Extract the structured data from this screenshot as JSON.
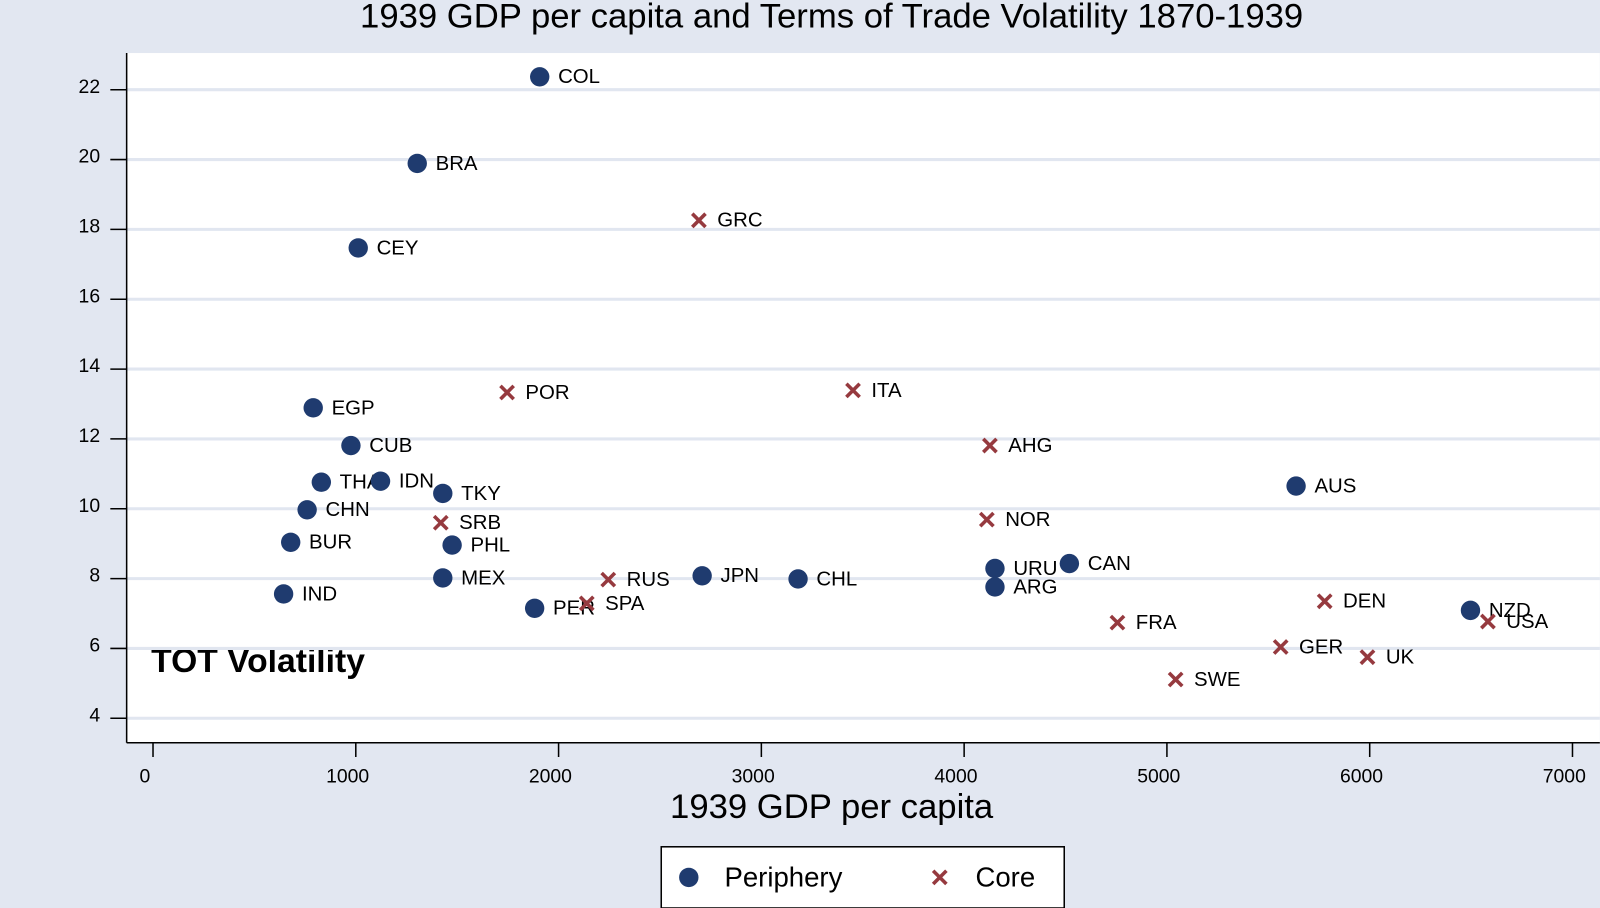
{
  "chart_data": {
    "type": "scatter",
    "title": "1939 GDP per capita and Terms of Trade Volatility 1870-1939",
    "x_label": "1939 GDP per capita",
    "y_label": "TOT Volatility",
    "xlim": [
      -130,
      7135
    ],
    "ylim": [
      3.3,
      23.05
    ],
    "xticks": [
      0,
      1000,
      2000,
      3000,
      4000,
      5000,
      6000,
      7000
    ],
    "yticks": [
      4,
      6,
      8,
      10,
      12,
      14,
      16,
      18,
      20,
      22
    ],
    "grid": true,
    "legend": "bottom",
    "series": [
      {
        "name": "Periphery",
        "color": "#1f3b6f",
        "marker": "circle",
        "labels": [
          "COL",
          "BRA",
          "CEY",
          "EGP",
          "CUB",
          "THA",
          "IDN",
          "TKY",
          "CHN",
          "BUR",
          "PHL",
          "MEX",
          "IND",
          "PER",
          "JPN",
          "CHL",
          "URU",
          "ARG",
          "CAN",
          "AUS",
          "NZD"
        ],
        "x": [
          1907,
          1303,
          1012,
          790,
          976,
          830,
          1122,
          1429,
          760,
          679,
          1475,
          1429,
          644,
          1882,
          2708,
          3181,
          4152,
          4152,
          4519,
          5637,
          6497
        ],
        "values": [
          22.37,
          19.89,
          17.47,
          12.89,
          11.81,
          10.76,
          10.79,
          10.44,
          9.97,
          9.04,
          8.96,
          8.02,
          7.56,
          7.15,
          8.08,
          7.99,
          8.29,
          7.76,
          8.43,
          10.65,
          7.09
        ]
      },
      {
        "name": "Core",
        "color": "#963a3f",
        "marker": "x",
        "labels": [
          "GRC",
          "POR",
          "ITA",
          "AHG",
          "NOR",
          "SRB",
          "RUS",
          "SPA",
          "FRA",
          "DEN",
          "GER",
          "UK",
          "SWE",
          "USA"
        ],
        "x": [
          2692,
          1746,
          3452,
          4127,
          4112,
          1419,
          2245,
          2139,
          4756,
          5778,
          5561,
          5989,
          5043,
          6583
        ],
        "values": [
          18.26,
          13.33,
          13.39,
          11.81,
          9.69,
          9.6,
          7.97,
          7.29,
          6.74,
          7.35,
          6.04,
          5.75,
          5.11,
          6.77
        ]
      }
    ]
  }
}
